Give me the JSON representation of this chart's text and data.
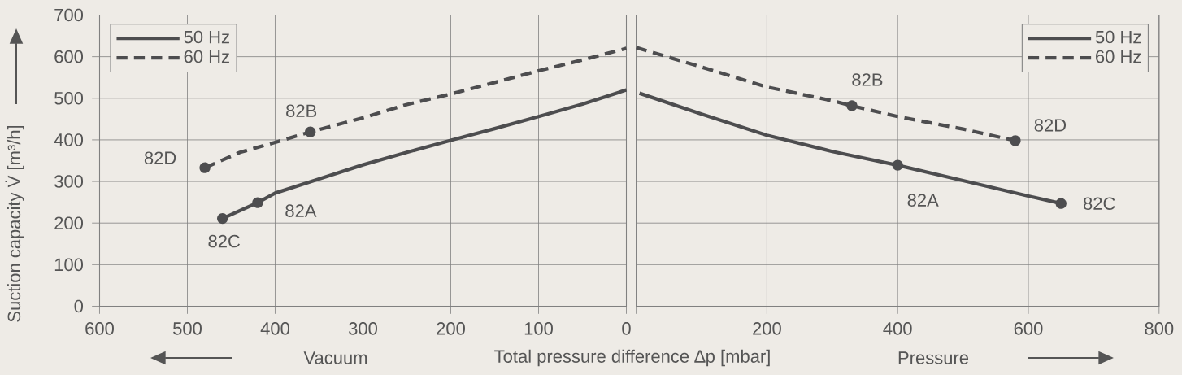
{
  "chart_data": [
    {
      "type": "line",
      "xlabel": "Total pressure difference ∆p [mbar]",
      "ylabel": "Suction capacity V̇ [m³/h]",
      "xlim": [
        600,
        0
      ],
      "xticks": [
        600,
        500,
        400,
        300,
        200,
        100,
        0
      ],
      "ylim": [
        0,
        700
      ],
      "yticks": [
        0,
        100,
        200,
        300,
        400,
        500,
        600,
        700
      ],
      "grid": true,
      "legend": "top left",
      "series": [
        {
          "name": "50 Hz",
          "color": "#4d4d4f",
          "line_style": "solid",
          "x": [
            460,
            420,
            400,
            350,
            300,
            250,
            200,
            150,
            100,
            50,
            0
          ],
          "values": [
            211,
            249,
            272,
            306,
            340,
            370,
            399,
            427,
            456,
            486,
            520
          ]
        },
        {
          "name": "60 Hz",
          "color": "#4d4d4f",
          "line_style": "dashed",
          "x": [
            480,
            440,
            400,
            360,
            300,
            250,
            200,
            150,
            100,
            50,
            0
          ],
          "values": [
            333,
            370,
            394,
            419,
            453,
            485,
            510,
            538,
            566,
            592,
            620
          ]
        }
      ],
      "annotations": [
        {
          "text": "82D",
          "x": 480,
          "y": 333
        },
        {
          "text": "82B",
          "x": 360,
          "y": 419
        },
        {
          "text": "82A",
          "x": 420,
          "y": 249
        },
        {
          "text": "82C",
          "x": 460,
          "y": 211
        },
        "Vacuum"
      ]
    },
    {
      "type": "line",
      "xlim": [
        0,
        800
      ],
      "xticks": [
        {
          "value": 0,
          "label": null
        },
        200,
        400,
        600,
        800
      ],
      "ylim": [
        0,
        700
      ],
      "yticks": [
        0,
        100,
        200,
        300,
        400,
        500,
        600,
        700
      ],
      "tick_labels": "x",
      "grid": true,
      "legend": "top right",
      "series": [
        {
          "name": "50 Hz",
          "color": "#4d4d4f",
          "line_style": "solid",
          "x": [
            5,
            100,
            200,
            300,
            400,
            500,
            600,
            650
          ],
          "values": [
            512,
            462,
            411,
            372,
            339,
            302,
            265,
            247
          ]
        },
        {
          "name": "60 Hz",
          "color": "#4d4d4f",
          "line_style": "dashed",
          "x": [
            0,
            100,
            200,
            300,
            330,
            400,
            500,
            580
          ],
          "values": [
            622,
            575,
            527,
            494,
            482,
            456,
            426,
            398
          ]
        }
      ],
      "annotations": [
        {
          "text": "82B",
          "x": 330,
          "y": 482
        },
        {
          "text": "82D",
          "x": 580,
          "y": 398
        },
        {
          "text": "82A",
          "x": 400,
          "y": 339
        },
        {
          "text": "82C",
          "x": 650,
          "y": 247
        },
        "Pressure"
      ]
    }
  ]
}
